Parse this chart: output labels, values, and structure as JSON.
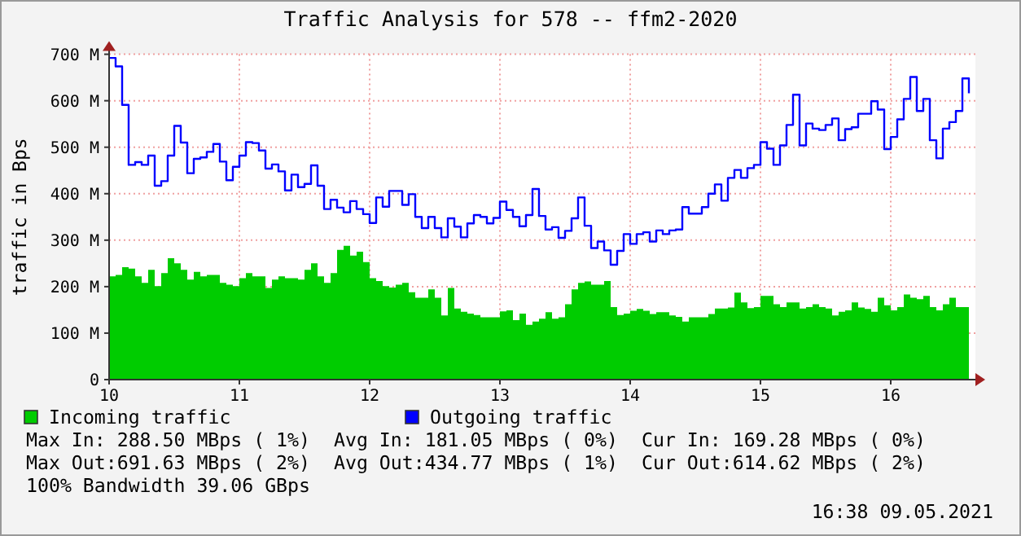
{
  "chart_data": {
    "type": "area",
    "title": "Traffic Analysis for 578 -- ffm2-2020",
    "ylabel": "traffic in Bps",
    "xlim": [
      10,
      16.65
    ],
    "xticks": [
      10,
      11,
      12,
      13,
      14,
      15,
      16
    ],
    "ylim": [
      0,
      700
    ],
    "yticks": [
      0,
      {
        "value": 100,
        "label": "100 M"
      },
      {
        "value": 200,
        "label": "200 M"
      },
      {
        "value": 300,
        "label": "300 M"
      },
      {
        "value": 400,
        "label": "400 M"
      },
      {
        "value": 500,
        "label": "500 M"
      },
      {
        "value": 600,
        "label": "600 M"
      },
      {
        "value": 700,
        "label": "700 M"
      }
    ],
    "grid": true,
    "legend": "bottom left",
    "x": [
      10,
      10.05,
      10.1,
      10.15,
      10.2,
      10.25,
      10.3,
      10.35,
      10.4,
      10.45,
      10.5,
      10.55,
      10.6,
      10.65,
      10.7,
      10.75,
      10.8,
      10.85,
      10.9,
      10.95,
      11,
      11.05,
      11.1,
      11.15,
      11.2,
      11.25,
      11.3,
      11.35,
      11.4,
      11.45,
      11.5,
      11.55,
      11.6,
      11.65,
      11.7,
      11.75,
      11.8,
      11.85,
      11.9,
      11.95,
      12,
      12.05,
      12.1,
      12.15,
      12.2,
      12.25,
      12.3,
      12.35,
      12.4,
      12.45,
      12.5,
      12.55,
      12.6,
      12.65,
      12.7,
      12.75,
      12.8,
      12.85,
      12.9,
      12.95,
      13,
      13.05,
      13.1,
      13.15,
      13.2,
      13.25,
      13.3,
      13.35,
      13.4,
      13.45,
      13.5,
      13.55,
      13.6,
      13.65,
      13.7,
      13.75,
      13.8,
      13.85,
      13.9,
      13.95,
      14,
      14.05,
      14.1,
      14.15,
      14.2,
      14.25,
      14.3,
      14.35,
      14.4,
      14.45,
      14.5,
      14.55,
      14.6,
      14.65,
      14.7,
      14.75,
      14.8,
      14.85,
      14.9,
      14.95,
      15,
      15.05,
      15.1,
      15.15,
      15.2,
      15.25,
      15.3,
      15.35,
      15.4,
      15.45,
      15.5,
      15.55,
      15.6,
      15.65,
      15.7,
      15.75,
      15.8,
      15.85,
      15.9,
      15.95,
      16,
      16.05,
      16.1,
      16.15,
      16.2,
      16.25,
      16.3,
      16.35,
      16.4,
      16.45,
      16.5,
      16.55,
      16.6
    ],
    "series": [
      {
        "name": "Incoming traffic",
        "color": "#00cc00",
        "values": [
          222,
          225,
          242,
          239,
          222,
          208,
          236,
          201,
          229,
          261,
          250,
          236,
          215,
          232,
          222,
          225,
          225,
          208,
          204,
          201,
          218,
          229,
          222,
          222,
          197,
          215,
          222,
          218,
          218,
          215,
          236,
          250,
          222,
          208,
          229,
          279,
          288,
          267,
          275,
          253,
          218,
          212,
          201,
          198,
          204,
          208,
          188,
          176,
          176,
          194,
          176,
          138,
          197,
          153,
          146,
          142,
          139,
          134,
          134,
          134,
          147,
          149,
          128,
          142,
          118,
          125,
          131,
          145,
          131,
          134,
          162,
          194,
          208,
          211,
          204,
          204,
          212,
          156,
          139,
          142,
          148,
          152,
          148,
          141,
          145,
          145,
          138,
          135,
          125,
          134,
          134,
          134,
          141,
          153,
          153,
          155,
          187,
          166,
          154,
          156,
          180,
          180,
          162,
          156,
          166,
          166,
          153,
          156,
          162,
          156,
          153,
          138,
          146,
          149,
          166,
          155,
          152,
          146,
          176,
          160,
          149,
          156,
          183,
          176,
          173,
          180,
          156,
          149,
          162,
          176,
          156,
          156,
          169
        ]
      },
      {
        "name": "Outgoing traffic",
        "type": "step",
        "color": "#0000ff",
        "values": [
          692,
          674,
          591,
          462,
          468,
          462,
          482,
          417,
          427,
          482,
          546,
          510,
          444,
          475,
          478,
          490,
          507,
          469,
          429,
          458,
          482,
          511,
          509,
          493,
          454,
          463,
          448,
          407,
          441,
          414,
          421,
          461,
          417,
          367,
          387,
          370,
          360,
          384,
          367,
          356,
          337,
          392,
          372,
          406,
          406,
          376,
          399,
          350,
          326,
          350,
          326,
          306,
          347,
          329,
          306,
          336,
          354,
          350,
          336,
          348,
          383,
          365,
          350,
          330,
          354,
          410,
          352,
          323,
          328,
          305,
          320,
          347,
          392,
          331,
          283,
          297,
          278,
          247,
          277,
          313,
          292,
          313,
          317,
          297,
          321,
          313,
          321,
          323,
          371,
          357,
          357,
          371,
          400,
          420,
          385,
          434,
          451,
          434,
          455,
          462,
          511,
          497,
          462,
          504,
          548,
          613,
          504,
          551,
          540,
          537,
          548,
          562,
          515,
          539,
          543,
          572,
          572,
          599,
          581,
          496,
          522,
          560,
          604,
          651,
          578,
          604,
          515,
          476,
          540,
          554,
          578,
          648,
          616
        ]
      }
    ],
    "annotations": [
      "Max In: 288.50 MBps ( 1%)",
      "Avg In: 181.05 MBps ( 0%)",
      "Cur In: 169.28 MBps ( 0%)",
      "Max Out:691.63 MBps ( 2%)",
      "Avg Out:434.77 MBps ( 1%)",
      "Cur Out:614.62 MBps ( 2%)",
      "100% Bandwidth 39.06 GBps",
      "16:38 09.05.2021"
    ]
  }
}
